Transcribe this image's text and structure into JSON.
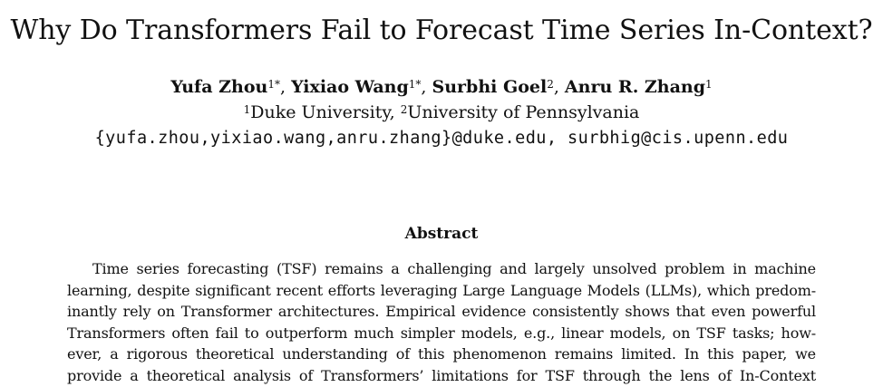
{
  "title": "Why Do Transformers Fail to Forecast Time Series In-Context?",
  "authors": [
    {
      "name": "Yufa Zhou",
      "sup": "1*"
    },
    {
      "name": "Yixiao Wang",
      "sup": "1*"
    },
    {
      "name": "Surbhi Goel",
      "sup": "2"
    },
    {
      "name": "Anru R. Zhang",
      "sup": "1"
    }
  ],
  "affiliations": [
    {
      "sup": "1",
      "name": "Duke University"
    },
    {
      "sup": "2",
      "name": "University of Pennsylvania"
    }
  ],
  "emails": "{yufa.zhou,yixiao.wang,anru.zhang}@duke.edu, surbhig@cis.upenn.edu",
  "abstract": {
    "heading": "Abstract",
    "lines": [
      "Time series forecasting (TSF) remains a challenging and largely unsolved problem in machine",
      "learning, despite significant recent efforts leveraging Large Language Models (LLMs), which predom-",
      "inantly rely on Transformer architectures. Empirical evidence consistently shows that even powerful",
      "Transformers often fail to outperform much simpler models, e.g., linear models, on TSF tasks; how-",
      "ever, a rigorous theoretical understanding of this phenomenon remains limited. In this paper, we",
      "provide a theoretical analysis of Transformers’ limitations for TSF through the lens of In-Context"
    ]
  }
}
